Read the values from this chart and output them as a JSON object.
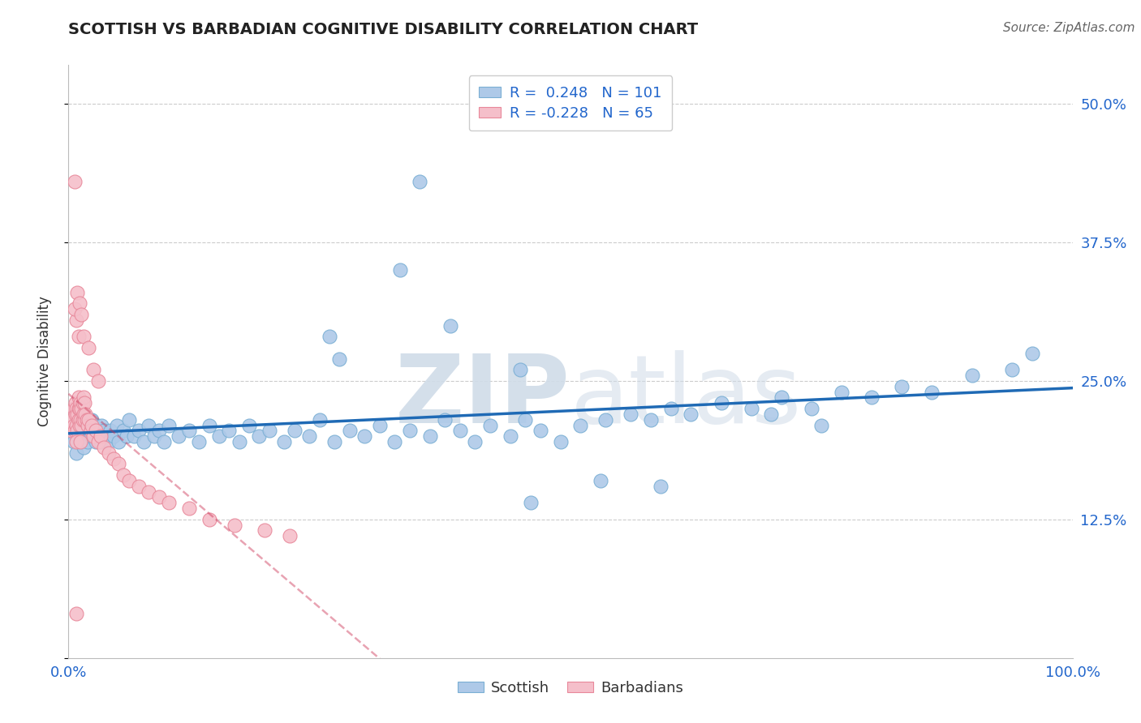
{
  "title": "SCOTTISH VS BARBADIAN COGNITIVE DISABILITY CORRELATION CHART",
  "source": "Source: ZipAtlas.com",
  "ylabel": "Cognitive Disability",
  "xlim": [
    0.0,
    1.0
  ],
  "ylim": [
    0.0,
    0.535
  ],
  "yticks": [
    0.0,
    0.125,
    0.25,
    0.375,
    0.5
  ],
  "ytick_labels": [
    "",
    "12.5%",
    "25.0%",
    "37.5%",
    "50.0%"
  ],
  "xtick_labels": [
    "0.0%",
    "",
    "",
    "",
    "100.0%"
  ],
  "r_scottish": 0.248,
  "n_scottish": 101,
  "r_barbadian": -0.228,
  "n_barbadian": 65,
  "scottish_color": "#aec9e8",
  "scottish_edge": "#7aafd4",
  "barbadian_color": "#f5bfca",
  "barbadian_edge": "#e8889a",
  "trend_scottish_color": "#1f6ab5",
  "trend_barbadian_color": "#cc3355",
  "watermark_color": "#d0dce8",
  "background_color": "#ffffff",
  "scottish_x": [
    0.005,
    0.007,
    0.008,
    0.01,
    0.01,
    0.012,
    0.013,
    0.014,
    0.015,
    0.015,
    0.016,
    0.017,
    0.018,
    0.019,
    0.02,
    0.021,
    0.022,
    0.023,
    0.025,
    0.026,
    0.027,
    0.028,
    0.029,
    0.03,
    0.032,
    0.033,
    0.035,
    0.037,
    0.04,
    0.042,
    0.045,
    0.048,
    0.05,
    0.055,
    0.058,
    0.06,
    0.065,
    0.07,
    0.075,
    0.08,
    0.085,
    0.09,
    0.095,
    0.1,
    0.11,
    0.12,
    0.13,
    0.14,
    0.15,
    0.16,
    0.17,
    0.18,
    0.19,
    0.2,
    0.215,
    0.225,
    0.24,
    0.25,
    0.265,
    0.28,
    0.295,
    0.31,
    0.325,
    0.34,
    0.36,
    0.375,
    0.39,
    0.405,
    0.42,
    0.44,
    0.455,
    0.47,
    0.49,
    0.51,
    0.535,
    0.56,
    0.58,
    0.6,
    0.62,
    0.65,
    0.68,
    0.71,
    0.74,
    0.77,
    0.8,
    0.83,
    0.86,
    0.9,
    0.94,
    0.96,
    0.26,
    0.38,
    0.45,
    0.53,
    0.7,
    0.75,
    0.46,
    0.59,
    0.33,
    0.27,
    0.35
  ],
  "scottish_y": [
    0.195,
    0.21,
    0.185,
    0.205,
    0.215,
    0.2,
    0.195,
    0.21,
    0.205,
    0.19,
    0.215,
    0.2,
    0.205,
    0.195,
    0.21,
    0.205,
    0.2,
    0.215,
    0.205,
    0.2,
    0.195,
    0.21,
    0.205,
    0.2,
    0.195,
    0.21,
    0.205,
    0.2,
    0.195,
    0.205,
    0.2,
    0.21,
    0.195,
    0.205,
    0.2,
    0.215,
    0.2,
    0.205,
    0.195,
    0.21,
    0.2,
    0.205,
    0.195,
    0.21,
    0.2,
    0.205,
    0.195,
    0.21,
    0.2,
    0.205,
    0.195,
    0.21,
    0.2,
    0.205,
    0.195,
    0.205,
    0.2,
    0.215,
    0.195,
    0.205,
    0.2,
    0.21,
    0.195,
    0.205,
    0.2,
    0.215,
    0.205,
    0.195,
    0.21,
    0.2,
    0.215,
    0.205,
    0.195,
    0.21,
    0.215,
    0.22,
    0.215,
    0.225,
    0.22,
    0.23,
    0.225,
    0.235,
    0.225,
    0.24,
    0.235,
    0.245,
    0.24,
    0.255,
    0.26,
    0.275,
    0.29,
    0.3,
    0.26,
    0.16,
    0.22,
    0.21,
    0.14,
    0.155,
    0.35,
    0.27,
    0.43
  ],
  "barbadian_x": [
    0.003,
    0.004,
    0.005,
    0.005,
    0.006,
    0.007,
    0.007,
    0.008,
    0.008,
    0.009,
    0.009,
    0.01,
    0.01,
    0.01,
    0.011,
    0.011,
    0.012,
    0.012,
    0.013,
    0.013,
    0.014,
    0.014,
    0.015,
    0.015,
    0.016,
    0.016,
    0.017,
    0.018,
    0.019,
    0.02,
    0.022,
    0.023,
    0.025,
    0.027,
    0.03,
    0.032,
    0.035,
    0.04,
    0.045,
    0.05,
    0.055,
    0.06,
    0.07,
    0.08,
    0.09,
    0.1,
    0.12,
    0.14,
    0.165,
    0.195,
    0.22,
    0.01,
    0.008,
    0.006,
    0.009,
    0.011,
    0.013,
    0.015,
    0.02,
    0.025,
    0.03,
    0.008,
    0.006,
    0.012,
    0.008
  ],
  "barbadian_y": [
    0.205,
    0.215,
    0.21,
    0.225,
    0.205,
    0.22,
    0.23,
    0.21,
    0.225,
    0.205,
    0.22,
    0.215,
    0.225,
    0.235,
    0.21,
    0.225,
    0.215,
    0.23,
    0.21,
    0.225,
    0.215,
    0.23,
    0.22,
    0.235,
    0.215,
    0.23,
    0.22,
    0.215,
    0.21,
    0.215,
    0.205,
    0.21,
    0.2,
    0.205,
    0.195,
    0.2,
    0.19,
    0.185,
    0.18,
    0.175,
    0.165,
    0.16,
    0.155,
    0.15,
    0.145,
    0.14,
    0.135,
    0.125,
    0.12,
    0.115,
    0.11,
    0.29,
    0.305,
    0.315,
    0.33,
    0.32,
    0.31,
    0.29,
    0.28,
    0.26,
    0.25,
    0.195,
    0.43,
    0.195,
    0.04
  ]
}
